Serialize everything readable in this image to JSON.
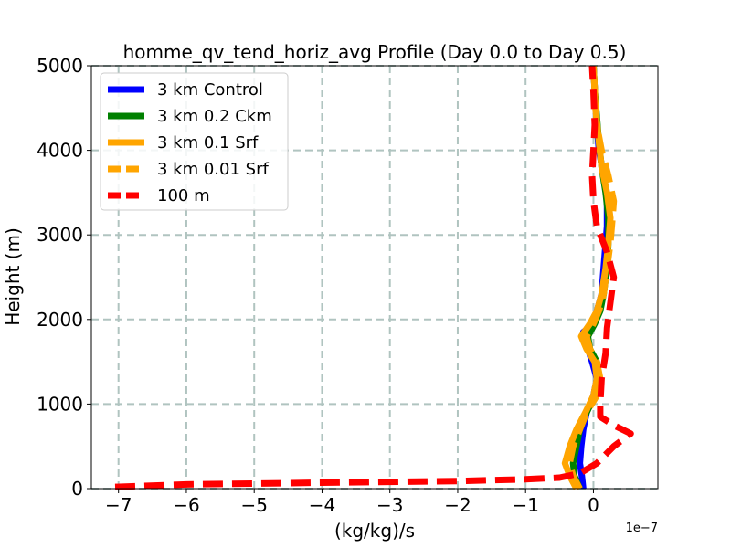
{
  "chart_data": {
    "type": "line",
    "title": "homme_qv_tend_horiz_avg Profile (Day 0.0 to Day 0.5)",
    "xlabel": "(kg/kg)/s",
    "ylabel": "Height (m)",
    "x_multiplier_label": "1e−7",
    "xlim": [
      -7.4,
      0.95
    ],
    "ylim": [
      0,
      5000
    ],
    "x_ticks": [
      -7,
      -6,
      -5,
      -4,
      -3,
      -2,
      -1,
      0
    ],
    "x_tick_labels": [
      "−7",
      "−6",
      "−5",
      "−4",
      "−3",
      "−2",
      "−1",
      "0"
    ],
    "y_ticks": [
      0,
      1000,
      2000,
      3000,
      4000,
      5000
    ],
    "y_tick_labels": [
      "0",
      "1000",
      "2000",
      "3000",
      "4000",
      "5000"
    ],
    "grid": true,
    "legend_position": "top-left",
    "series": [
      {
        "name": "3 km Control",
        "color": "#0000ff",
        "dash": "solid",
        "points": [
          [
            -0.15,
            0
          ],
          [
            -0.17,
            150
          ],
          [
            -0.2,
            300
          ],
          [
            -0.18,
            500
          ],
          [
            -0.15,
            700
          ],
          [
            -0.1,
            900
          ],
          [
            0.0,
            1100
          ],
          [
            0.05,
            1300
          ],
          [
            -0.02,
            1500
          ],
          [
            -0.1,
            1700
          ],
          [
            -0.15,
            1850
          ],
          [
            0.0,
            1950
          ],
          [
            0.05,
            2100
          ],
          [
            0.12,
            2300
          ],
          [
            0.15,
            2600
          ],
          [
            0.18,
            2900
          ],
          [
            0.2,
            3100
          ],
          [
            0.2,
            3400
          ],
          [
            0.15,
            3700
          ],
          [
            0.08,
            4000
          ],
          [
            0.05,
            4300
          ],
          [
            0.02,
            4700
          ],
          [
            0.0,
            5000
          ]
        ]
      },
      {
        "name": "3 km 0.2 Ckm",
        "color": "#008000",
        "dash": "solid",
        "points": [
          [
            -0.2,
            0
          ],
          [
            -0.28,
            150
          ],
          [
            -0.3,
            300
          ],
          [
            -0.25,
            500
          ],
          [
            -0.2,
            700
          ],
          [
            -0.1,
            900
          ],
          [
            0.02,
            1100
          ],
          [
            0.08,
            1300
          ],
          [
            0.05,
            1500
          ],
          [
            -0.05,
            1650
          ],
          [
            -0.08,
            1800
          ],
          [
            0.02,
            1950
          ],
          [
            0.1,
            2100
          ],
          [
            0.15,
            2300
          ],
          [
            0.2,
            2600
          ],
          [
            0.22,
            2900
          ],
          [
            0.22,
            3200
          ],
          [
            0.18,
            3500
          ],
          [
            0.12,
            3800
          ],
          [
            0.08,
            4100
          ],
          [
            0.05,
            4400
          ],
          [
            0.02,
            4700
          ],
          [
            0.0,
            5000
          ]
        ]
      },
      {
        "name": "3 km 0.1 Srf",
        "color": "#ffa500",
        "dash": "solid",
        "points": [
          [
            -0.25,
            0
          ],
          [
            -0.35,
            150
          ],
          [
            -0.42,
            300
          ],
          [
            -0.35,
            500
          ],
          [
            -0.25,
            700
          ],
          [
            -0.12,
            900
          ],
          [
            0.0,
            1100
          ],
          [
            0.05,
            1300
          ],
          [
            0.02,
            1500
          ],
          [
            -0.1,
            1650
          ],
          [
            -0.18,
            1800
          ],
          [
            -0.05,
            1950
          ],
          [
            0.05,
            2100
          ],
          [
            0.12,
            2300
          ],
          [
            0.18,
            2600
          ],
          [
            0.22,
            2900
          ],
          [
            0.25,
            3200
          ],
          [
            0.2,
            3500
          ],
          [
            0.12,
            3800
          ],
          [
            0.08,
            4100
          ],
          [
            0.03,
            4500
          ],
          [
            0.0,
            5000
          ]
        ]
      },
      {
        "name": "3 km 0.01 Srf",
        "color": "#ffa500",
        "dash": "dashed",
        "points": [
          [
            -0.2,
            0
          ],
          [
            -0.3,
            150
          ],
          [
            -0.35,
            300
          ],
          [
            -0.3,
            500
          ],
          [
            -0.2,
            700
          ],
          [
            -0.1,
            900
          ],
          [
            0.05,
            1100
          ],
          [
            0.1,
            1300
          ],
          [
            0.05,
            1500
          ],
          [
            -0.05,
            1650
          ],
          [
            -0.1,
            1800
          ],
          [
            0.0,
            1950
          ],
          [
            0.08,
            2100
          ],
          [
            0.15,
            2300
          ],
          [
            0.2,
            2600
          ],
          [
            0.25,
            2900
          ],
          [
            0.28,
            3200
          ],
          [
            0.3,
            3400
          ],
          [
            0.22,
            3700
          ],
          [
            0.12,
            4000
          ],
          [
            0.05,
            4300
          ],
          [
            0.02,
            4700
          ],
          [
            0.0,
            5000
          ]
        ]
      },
      {
        "name": "100 m",
        "color": "#ff0000",
        "dash": "dashed",
        "points": [
          [
            -7.05,
            20
          ],
          [
            -6.0,
            50
          ],
          [
            -4.0,
            70
          ],
          [
            -2.0,
            90
          ],
          [
            -1.0,
            110
          ],
          [
            -0.5,
            130
          ],
          [
            -0.2,
            180
          ],
          [
            0.05,
            300
          ],
          [
            0.3,
            500
          ],
          [
            0.55,
            650
          ],
          [
            0.3,
            750
          ],
          [
            0.1,
            850
          ],
          [
            0.1,
            1000
          ],
          [
            0.12,
            1300
          ],
          [
            0.18,
            1600
          ],
          [
            0.2,
            1900
          ],
          [
            0.25,
            2200
          ],
          [
            0.3,
            2500
          ],
          [
            0.2,
            2800
          ],
          [
            0.05,
            3100
          ],
          [
            0.0,
            3400
          ],
          [
            -0.02,
            3700
          ],
          [
            0.0,
            4000
          ],
          [
            0.02,
            4300
          ],
          [
            0.0,
            4700
          ],
          [
            -0.02,
            5000
          ]
        ]
      }
    ]
  }
}
